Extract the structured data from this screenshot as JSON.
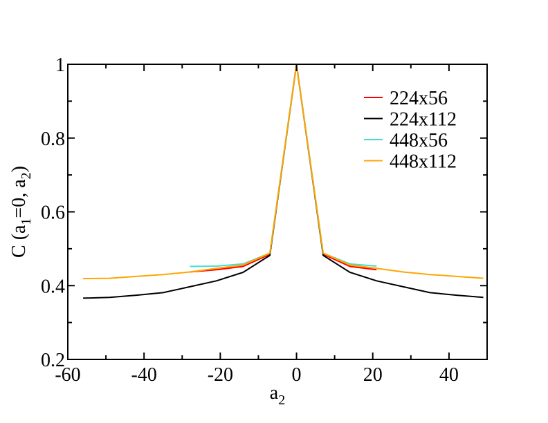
{
  "chart_data": {
    "type": "line",
    "title": "",
    "xlabel": {
      "base": "a",
      "sub": "2"
    },
    "ylabel": {
      "parts": [
        "C (a",
        "1",
        "=0, a",
        "2",
        ")"
      ]
    },
    "xlim": [
      -60,
      50
    ],
    "ylim": [
      0.2,
      1.0
    ],
    "xticks": [
      -60,
      -40,
      -20,
      0,
      20,
      40
    ],
    "xtick_labels": [
      "-60",
      "-40",
      "-20",
      "0",
      "20",
      "40"
    ],
    "yticks": [
      0.2,
      0.4,
      0.6,
      0.8,
      1.0
    ],
    "ytick_labels": [
      "0.2",
      "0.4",
      "0.6",
      "0.8",
      "1"
    ],
    "grid": false,
    "legend_position": "top-right",
    "series": [
      {
        "name": "224x56",
        "color": "#ff0000",
        "x": [
          -28,
          -21,
          -14,
          -7,
          0,
          7,
          14,
          21
        ],
        "y": [
          0.437,
          0.443,
          0.452,
          0.485,
          1.0,
          0.485,
          0.452,
          0.443
        ]
      },
      {
        "name": "224x112",
        "color": "#000000",
        "x": [
          -56,
          -49,
          -42,
          -35,
          -28,
          -21,
          -14,
          -7,
          0,
          7,
          14,
          21,
          28,
          35,
          42,
          49
        ],
        "y": [
          0.366,
          0.368,
          0.374,
          0.381,
          0.397,
          0.413,
          0.436,
          0.482,
          1.0,
          0.482,
          0.436,
          0.413,
          0.397,
          0.381,
          0.374,
          0.368
        ]
      },
      {
        "name": "448x56",
        "color": "#40e0d0",
        "x": [
          -28,
          -21,
          -14,
          -7,
          0,
          7,
          14,
          21
        ],
        "y": [
          0.452,
          0.453,
          0.459,
          0.488,
          1.0,
          0.488,
          0.459,
          0.453
        ]
      },
      {
        "name": "448x112",
        "color": "#ffa500",
        "x": [
          -56,
          -49,
          -42,
          -35,
          -28,
          -21,
          -14,
          -7,
          0,
          7,
          14,
          21,
          28,
          35,
          42,
          49
        ],
        "y": [
          0.419,
          0.42,
          0.425,
          0.43,
          0.437,
          0.447,
          0.456,
          0.488,
          1.0,
          0.488,
          0.456,
          0.447,
          0.437,
          0.43,
          0.425,
          0.42
        ]
      }
    ]
  }
}
